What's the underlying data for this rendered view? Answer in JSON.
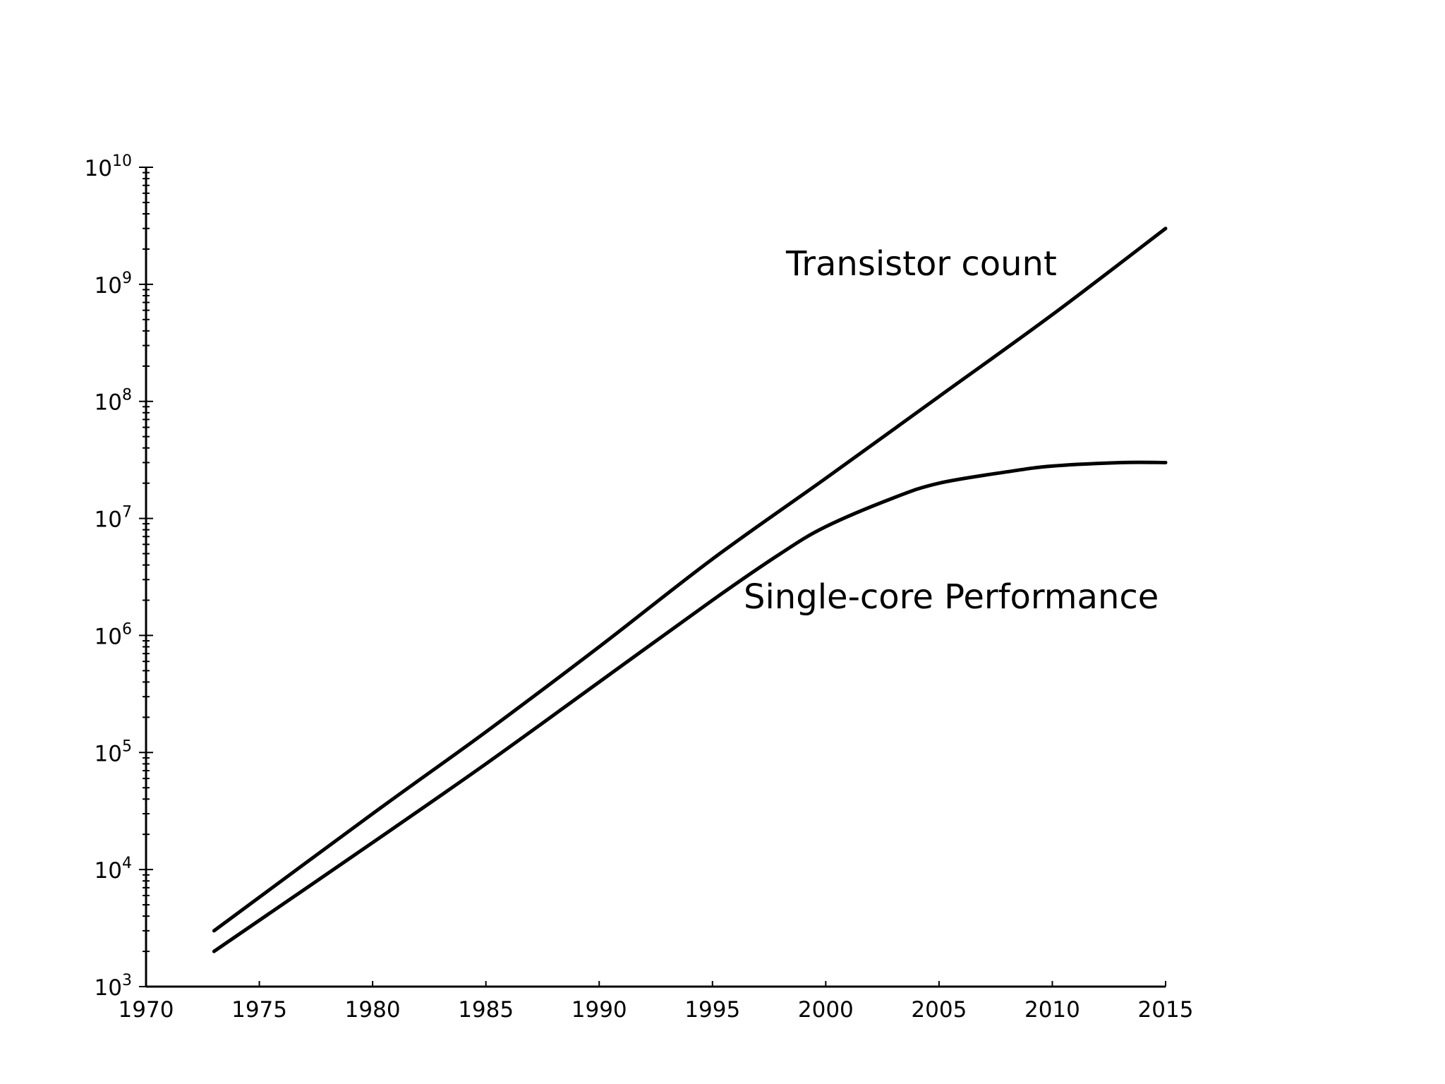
{
  "chart_data": {
    "type": "line",
    "title": "",
    "xlabel": "",
    "ylabel": "",
    "yscale": "log",
    "grid": false,
    "legend": "none",
    "xlim": [
      1970,
      2015
    ],
    "ylim": [
      1000,
      10000000000
    ],
    "x_ticks": [
      {
        "value": 1970,
        "label": "1970"
      },
      {
        "value": 1975,
        "label": "1975"
      },
      {
        "value": 1980,
        "label": "1980"
      },
      {
        "value": 1985,
        "label": "1985"
      },
      {
        "value": 1990,
        "label": "1990"
      },
      {
        "value": 1995,
        "label": "1995"
      },
      {
        "value": 2000,
        "label": "2000"
      },
      {
        "value": 2005,
        "label": "2005"
      },
      {
        "value": 2010,
        "label": "2010"
      },
      {
        "value": 2015,
        "label": "2015"
      }
    ],
    "y_ticks": [
      {
        "value": 1000,
        "base": "10",
        "exp": "3"
      },
      {
        "value": 10000,
        "base": "10",
        "exp": "4"
      },
      {
        "value": 100000,
        "base": "10",
        "exp": "5"
      },
      {
        "value": 1000000,
        "base": "10",
        "exp": "6"
      },
      {
        "value": 10000000,
        "base": "10",
        "exp": "7"
      },
      {
        "value": 100000000,
        "base": "10",
        "exp": "8"
      },
      {
        "value": 1000000000,
        "base": "10",
        "exp": "9"
      },
      {
        "value": 10000000000,
        "base": "10",
        "exp": "10"
      }
    ],
    "series": [
      {
        "name": "Transistor count",
        "x": [
          1973,
          1980,
          1985,
          1990,
          1995,
          2000,
          2005,
          2010,
          2015
        ],
        "y": [
          3000,
          30000,
          150000,
          800000,
          4500000,
          22000000,
          110000000,
          550000000,
          3000000000
        ]
      },
      {
        "name": "Single-core Performance",
        "x": [
          1973,
          1980,
          1985,
          1990,
          1995,
          1998,
          2000,
          2003,
          2005,
          2008,
          2010,
          2013,
          2015
        ],
        "y": [
          2000,
          17000,
          80000,
          400000,
          2000000,
          5000000,
          8500000,
          15000000,
          20000000,
          25000000,
          28000000,
          30000000,
          30000000
        ]
      }
    ]
  }
}
